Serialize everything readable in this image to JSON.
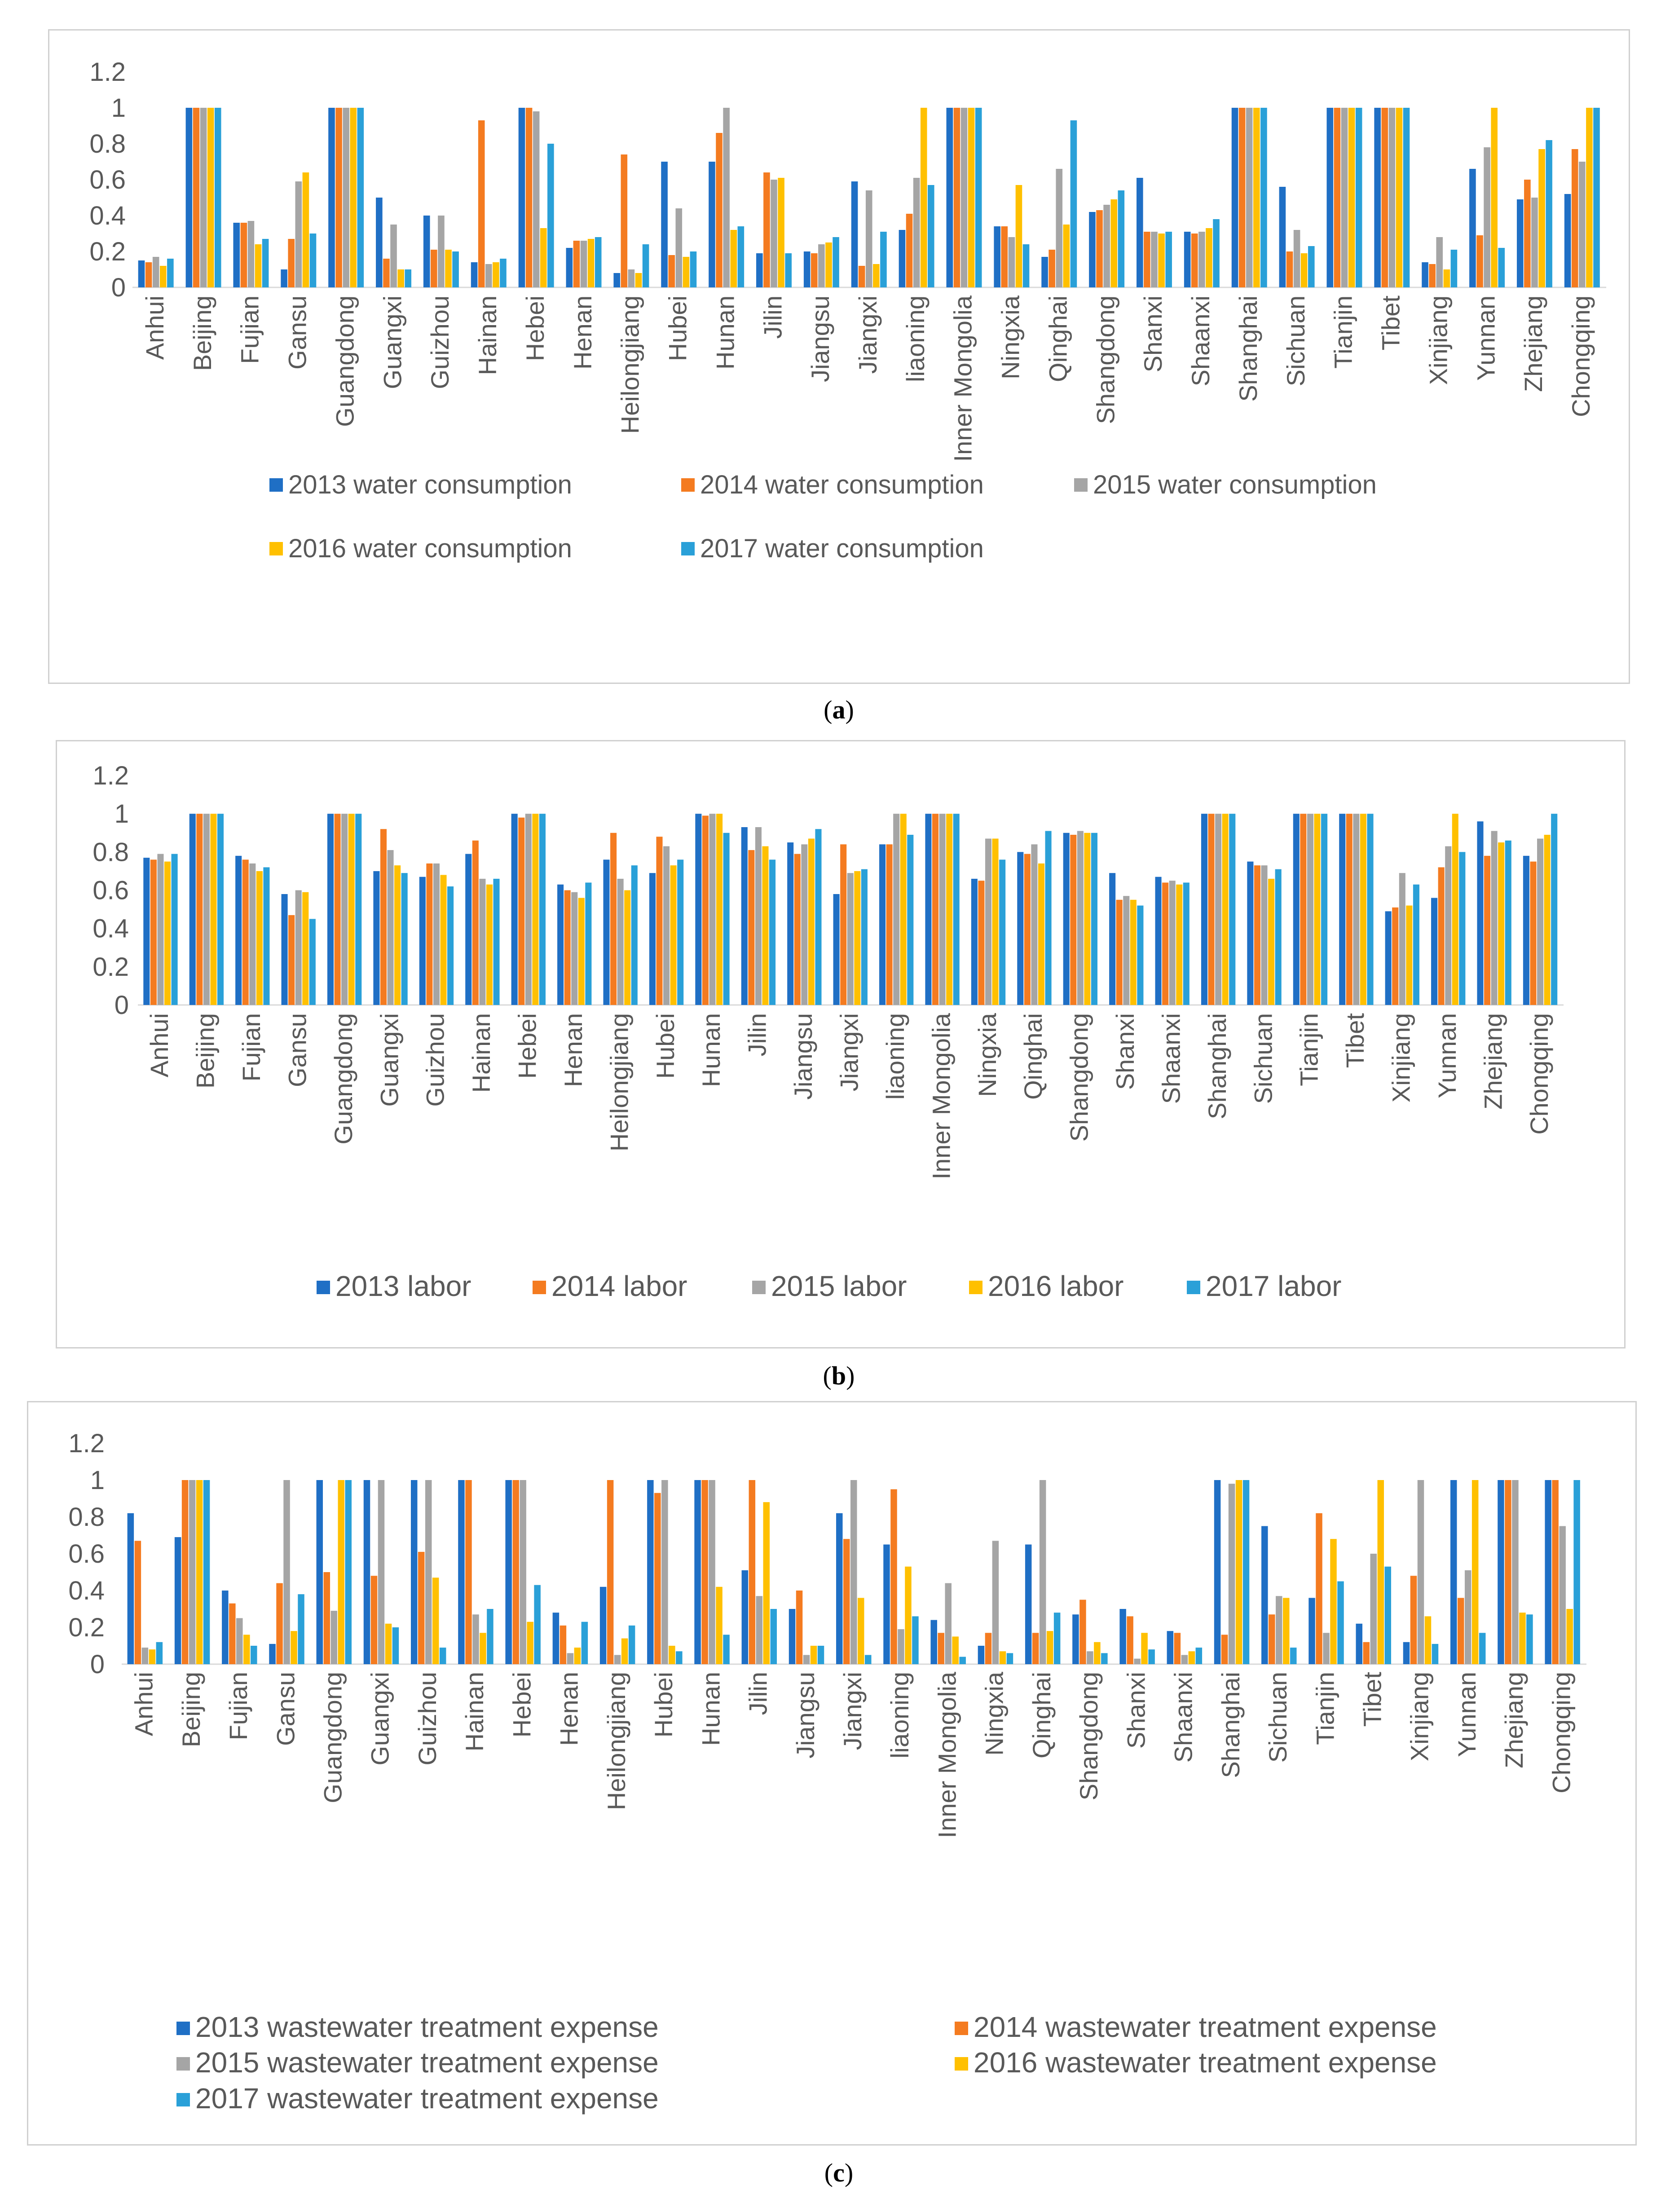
{
  "chart_data": [
    {
      "type": "bar",
      "panel_label": "a",
      "categories": [
        "Anhui",
        "Beijing",
        "Fujian",
        "Gansu",
        "Guangdong",
        "Guangxi",
        "Guizhou",
        "Hainan",
        "Hebei",
        "Henan",
        "Heilongjiang",
        "Hubei",
        "Hunan",
        "Jilin",
        "Jiangsu",
        "Jiangxi",
        "liaoning",
        "Inner Mongolia",
        "Ningxia",
        "Qinghai",
        "Shangdong",
        "Shanxi",
        "Shaanxi",
        "Shanghai",
        "Sichuan",
        "Tianjin",
        "Tibet",
        "Xinjiang",
        "Yunnan",
        "Zhejiang",
        "Chongqing"
      ],
      "ylim": [
        0,
        1.2
      ],
      "yticks": [
        "0",
        "0.2",
        "0.4",
        "0.6",
        "0.8",
        "1",
        "1.2"
      ],
      "series": [
        {
          "name": "2013 water consumption",
          "values": [
            0.15,
            1,
            0.36,
            0.1,
            1,
            0.5,
            0.4,
            0.14,
            1,
            0.22,
            0.08,
            0.7,
            0.7,
            0.19,
            0.2,
            0.59,
            0.32,
            1,
            0.34,
            0.17,
            0.42,
            0.61,
            0.31,
            1,
            0.56,
            1,
            1,
            0.14,
            0.66,
            0.49,
            0.52
          ]
        },
        {
          "name": "2014 water consumption",
          "values": [
            0.14,
            1,
            0.36,
            0.27,
            1,
            0.16,
            0.21,
            0.93,
            1,
            0.26,
            0.74,
            0.18,
            0.86,
            0.64,
            0.19,
            0.12,
            0.41,
            1,
            0.34,
            0.21,
            0.43,
            0.31,
            0.3,
            1,
            0.2,
            1,
            1,
            0.13,
            0.29,
            0.6,
            0.77
          ]
        },
        {
          "name": "2015 water consumption",
          "values": [
            0.17,
            1,
            0.37,
            0.59,
            1,
            0.35,
            0.4,
            0.13,
            0.98,
            0.26,
            0.1,
            0.44,
            1,
            0.6,
            0.24,
            0.54,
            0.61,
            1,
            0.28,
            0.66,
            0.46,
            0.31,
            0.31,
            1,
            0.32,
            1,
            1,
            0.28,
            0.78,
            0.5,
            0.7
          ]
        },
        {
          "name": "2016 water consumption",
          "values": [
            0.12,
            1,
            0.24,
            0.64,
            1,
            0.1,
            0.21,
            0.14,
            0.33,
            0.27,
            0.08,
            0.17,
            0.32,
            0.61,
            0.25,
            0.13,
            1,
            1,
            0.57,
            0.35,
            0.49,
            0.3,
            0.33,
            1,
            0.19,
            1,
            1,
            0.1,
            1,
            0.77,
            1
          ]
        },
        {
          "name": "2017 water consumption",
          "values": [
            0.16,
            1,
            0.27,
            0.3,
            1,
            0.1,
            0.2,
            0.16,
            0.8,
            0.28,
            0.24,
            0.2,
            0.34,
            0.19,
            0.28,
            0.31,
            0.57,
            1,
            0.24,
            0.93,
            0.54,
            0.31,
            0.38,
            1,
            0.23,
            1,
            1,
            0.21,
            0.22,
            0.82,
            1
          ]
        }
      ],
      "legend": "bottom"
    },
    {
      "type": "bar",
      "panel_label": "b",
      "categories": [
        "Anhui",
        "Beijing",
        "Fujian",
        "Gansu",
        "Guangdong",
        "Guangxi",
        "Guizhou",
        "Hainan",
        "Hebei",
        "Henan",
        "Heilongjiang",
        "Hubei",
        "Hunan",
        "Jilin",
        "Jiangsu",
        "Jiangxi",
        "liaoning",
        "Inner Mongolia",
        "Ningxia",
        "Qinghai",
        "Shangdong",
        "Shanxi",
        "Shaanxi",
        "Shanghai",
        "Sichuan",
        "Tianjin",
        "Tibet",
        "Xinjiang",
        "Yunnan",
        "Zhejiang",
        "Chongqing"
      ],
      "ylim": [
        0,
        1.2
      ],
      "yticks": [
        "0",
        "0.2",
        "0.4",
        "0.6",
        "0.8",
        "1",
        "1.2"
      ],
      "series": [
        {
          "name": "2013 labor",
          "values": [
            0.77,
            1,
            0.78,
            0.58,
            1,
            0.7,
            0.67,
            0.79,
            1,
            0.63,
            0.76,
            0.69,
            1,
            0.93,
            0.85,
            0.58,
            0.84,
            1,
            0.66,
            0.8,
            0.9,
            0.69,
            0.67,
            1,
            0.75,
            1,
            1,
            0.49,
            0.56,
            0.96,
            0.78
          ]
        },
        {
          "name": "2014 labor",
          "values": [
            0.76,
            1,
            0.76,
            0.47,
            1,
            0.92,
            0.74,
            0.86,
            0.98,
            0.6,
            0.9,
            0.88,
            0.99,
            0.81,
            0.79,
            0.84,
            0.84,
            1,
            0.65,
            0.79,
            0.89,
            0.55,
            0.64,
            1,
            0.73,
            1,
            1,
            0.51,
            0.72,
            0.78,
            0.75
          ]
        },
        {
          "name": "2015 labor",
          "values": [
            0.79,
            1,
            0.74,
            0.6,
            1,
            0.81,
            0.74,
            0.66,
            1,
            0.59,
            0.66,
            0.83,
            1,
            0.93,
            0.84,
            0.69,
            1,
            1,
            0.87,
            0.84,
            0.91,
            0.57,
            0.65,
            1,
            0.73,
            1,
            1,
            0.69,
            0.83,
            0.91,
            0.87
          ]
        },
        {
          "name": "2016 labor",
          "values": [
            0.75,
            1,
            0.7,
            0.59,
            1,
            0.73,
            0.68,
            0.63,
            1,
            0.56,
            0.6,
            0.73,
            1,
            0.83,
            0.87,
            0.7,
            1,
            1,
            0.87,
            0.74,
            0.9,
            0.55,
            0.63,
            1,
            0.66,
            1,
            1,
            0.52,
            1,
            0.85,
            0.89
          ]
        },
        {
          "name": "2017 labor",
          "values": [
            0.79,
            1,
            0.72,
            0.45,
            1,
            0.69,
            0.62,
            0.66,
            1,
            0.64,
            0.73,
            0.76,
            0.9,
            0.76,
            0.92,
            0.71,
            0.89,
            1,
            0.76,
            0.91,
            0.9,
            0.52,
            0.64,
            1,
            0.71,
            1,
            1,
            0.63,
            0.8,
            0.86,
            1
          ]
        }
      ],
      "legend": "bottom"
    },
    {
      "type": "bar",
      "panel_label": "c",
      "categories": [
        "Anhui",
        "Beijing",
        "Fujian",
        "Gansu",
        "Guangdong",
        "Guangxi",
        "Guizhou",
        "Hainan",
        "Hebei",
        "Henan",
        "Heilongjiang",
        "Hubei",
        "Hunan",
        "Jilin",
        "Jiangsu",
        "Jiangxi",
        "liaoning",
        "Inner Mongolia",
        "Ningxia",
        "Qinghai",
        "Shangdong",
        "Shanxi",
        "Shaanxi",
        "Shanghai",
        "Sichuan",
        "Tianjin",
        "Tibet",
        "Xinjiang",
        "Yunnan",
        "Zhejiang",
        "Chongqing"
      ],
      "ylim": [
        0,
        1.2
      ],
      "yticks": [
        "0",
        "0.2",
        "0.4",
        "0.6",
        "0.8",
        "1",
        "1.2"
      ],
      "series": [
        {
          "name": "2013 wastewater treatment expense",
          "values": [
            0.82,
            0.69,
            0.4,
            0.11,
            1,
            1,
            1,
            1,
            1,
            0.28,
            0.42,
            1,
            1,
            0.51,
            0.3,
            0.82,
            0.65,
            0.24,
            0.1,
            0.65,
            0.27,
            0.3,
            0.18,
            1,
            0.75,
            0.36,
            0.22,
            0.12,
            1,
            1,
            1
          ]
        },
        {
          "name": "2014 wastewater treatment expense",
          "values": [
            0.67,
            1,
            0.33,
            0.44,
            0.5,
            0.48,
            0.61,
            1,
            1,
            0.21,
            1,
            0.93,
            1,
            1,
            0.4,
            0.68,
            0.95,
            0.17,
            0.17,
            0.17,
            0.35,
            0.26,
            0.17,
            0.16,
            0.27,
            0.82,
            0.12,
            0.48,
            0.36,
            1,
            1
          ]
        },
        {
          "name": "2015 wastewater treatment expense",
          "values": [
            0.09,
            1,
            0.25,
            1,
            0.29,
            1,
            1,
            0.27,
            1,
            0.06,
            0.05,
            1,
            1,
            0.37,
            0.05,
            1,
            0.19,
            0.44,
            0.67,
            1,
            0.07,
            0.03,
            0.05,
            0.98,
            0.37,
            0.17,
            0.6,
            1,
            0.51,
            1,
            0.75
          ]
        },
        {
          "name": "2016 wastewater treatment expense",
          "values": [
            0.08,
            1,
            0.16,
            0.18,
            1,
            0.22,
            0.47,
            0.17,
            0.23,
            0.09,
            0.14,
            0.1,
            0.42,
            0.88,
            0.1,
            0.36,
            0.53,
            0.15,
            0.07,
            0.18,
            0.12,
            0.17,
            0.07,
            1,
            0.36,
            0.68,
            1,
            0.26,
            1,
            0.28,
            0.3
          ]
        },
        {
          "name": "2017 wastewater treatment expense",
          "values": [
            0.12,
            1,
            0.1,
            0.38,
            1,
            0.2,
            0.09,
            0.3,
            0.43,
            0.23,
            0.21,
            0.07,
            0.16,
            0.3,
            0.1,
            0.05,
            0.26,
            0.04,
            0.06,
            0.28,
            0.06,
            0.08,
            0.09,
            1,
            0.09,
            0.45,
            0.53,
            0.11,
            0.17,
            0.27,
            1
          ]
        }
      ],
      "legend": "bottom-two-column"
    }
  ],
  "colors": [
    "#1f6fc5",
    "#f47b20",
    "#a5a5a5",
    "#ffc000",
    "#2aa0d8"
  ]
}
